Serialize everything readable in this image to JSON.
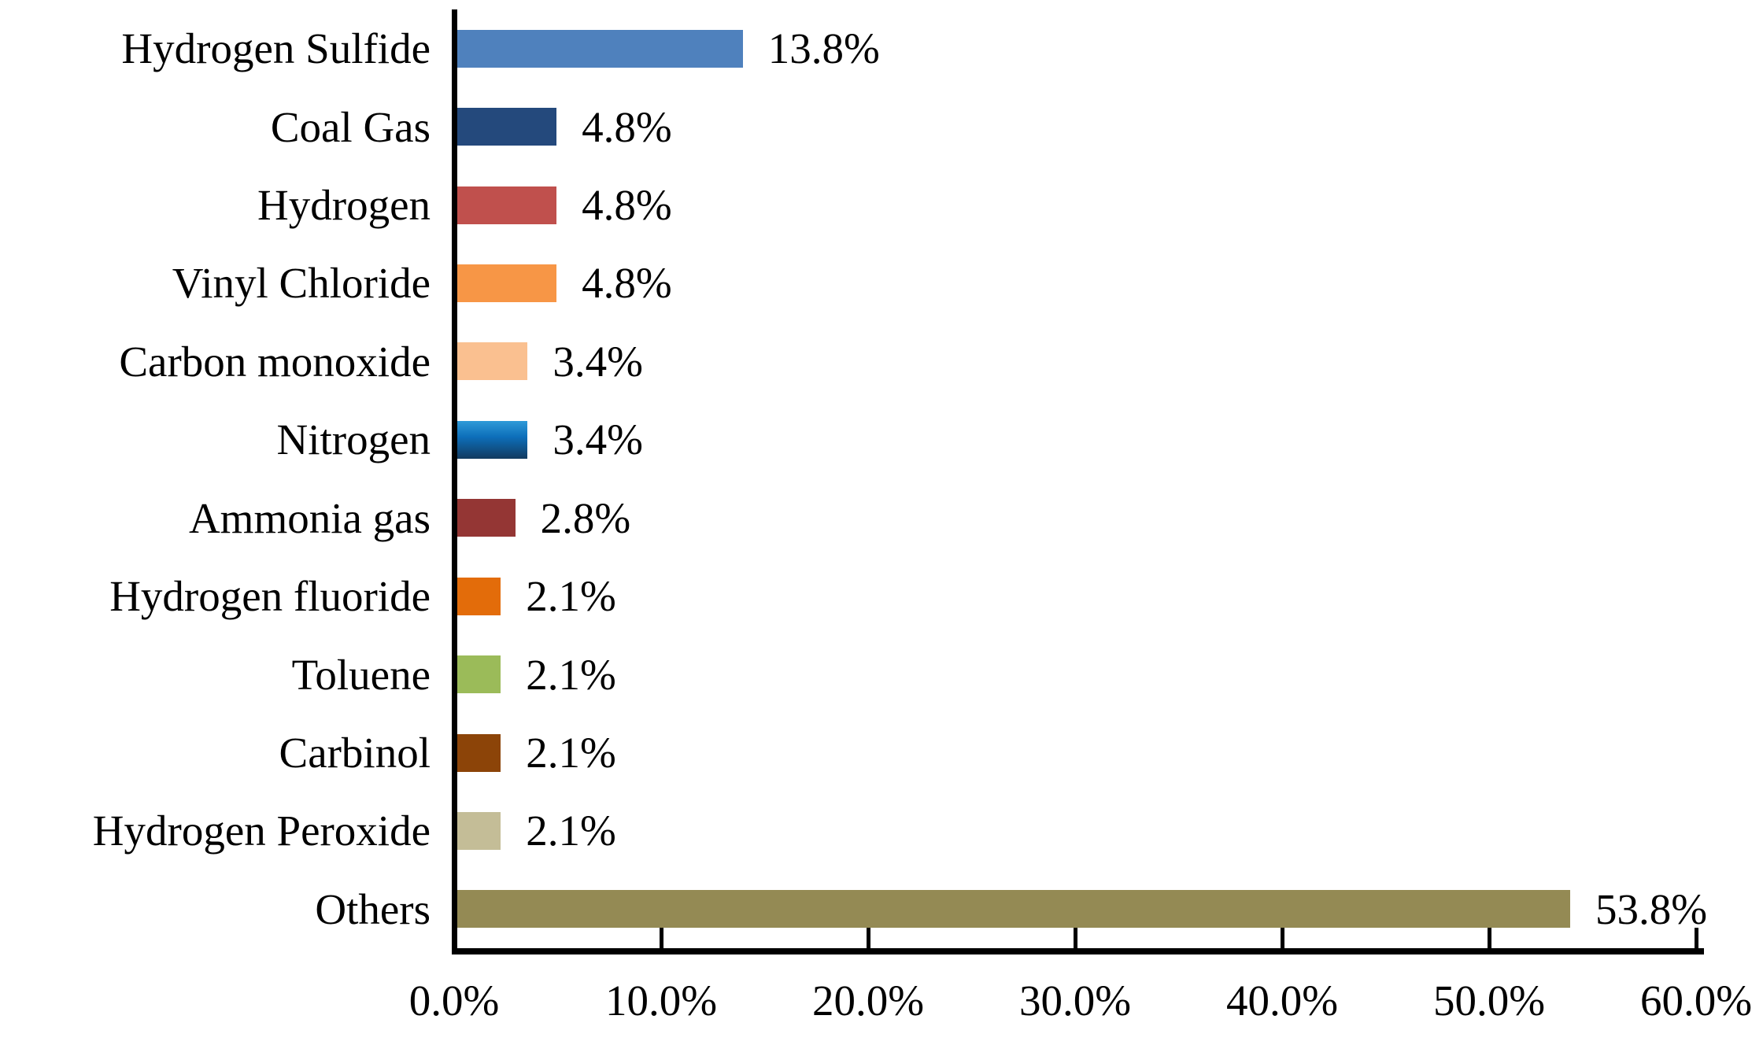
{
  "chart_data": {
    "type": "bar",
    "orientation": "horizontal",
    "title": "",
    "xlabel": "",
    "ylabel": "",
    "xlim": [
      0,
      60
    ],
    "x_tick_labels": [
      "0.0%",
      "10.0%",
      "20.0%",
      "30.0%",
      "40.0%",
      "50.0%",
      "60.0%"
    ],
    "grid": false,
    "legend": false,
    "categories": [
      "Hydrogen Sulfide",
      "Coal Gas",
      "Hydrogen",
      "Vinyl Chloride",
      "Carbon monoxide",
      "Nitrogen",
      "Ammonia gas",
      "Hydrogen fluoride",
      "Toluene",
      "Carbinol",
      "Hydrogen Peroxide",
      "Others"
    ],
    "values": [
      13.8,
      4.8,
      4.8,
      4.8,
      3.4,
      3.4,
      2.8,
      2.1,
      2.1,
      2.1,
      2.1,
      53.8
    ],
    "data_labels": [
      "13.8%",
      "4.8%",
      "4.8%",
      "4.8%",
      "3.4%",
      "3.4%",
      "2.8%",
      "2.1%",
      "2.1%",
      "2.1%",
      "2.1%",
      "53.8%"
    ],
    "bar_colors": [
      "#4f81bd",
      "#24497c",
      "#c0504d",
      "#f79646",
      "#fac090",
      "gradient:nitrogen",
      "#943634",
      "#e36c0a",
      "#9bbb59",
      "#8c4408",
      "#c4bd97",
      "#948a54"
    ],
    "nitrogen_gradient": {
      "top": "#2f9ad8",
      "middle": "#0d6fba",
      "bottom": "#123a5f"
    },
    "axis_color": "#000000",
    "background_color": "#ffffff"
  }
}
